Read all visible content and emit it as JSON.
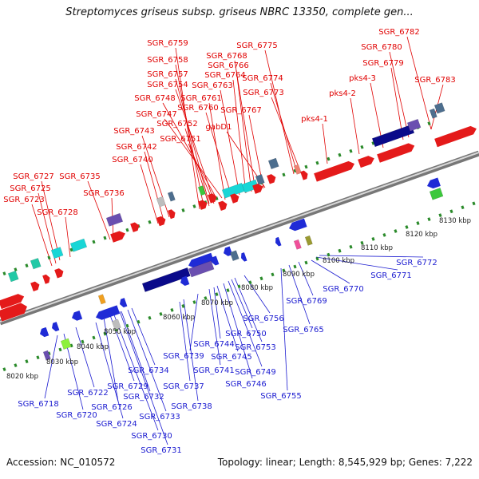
{
  "title": "Streptomyces griseus subsp. griseus NBRC 13350, complete gen...",
  "footer": {
    "accession_label": "Accession:",
    "accession": "NC_010572",
    "topology_label": "Topology:",
    "topology": "linear",
    "length_label": "Length:",
    "length": "8,545,929 bp",
    "genes_label": "Genes:",
    "genes": "7,222"
  },
  "colors": {
    "forward_label": "#e00000",
    "reverse_label": "#1a1ad0",
    "tick": "#2a8a2a",
    "backbone": "#888888",
    "red_gene": "#e41a1a",
    "blue_gene": "#1f2bd6",
    "navy_gene": "#0a0a8a",
    "cyan_gene": "#19d6d6",
    "teal_gene": "#22c9a6",
    "green_gene": "#3cc83c",
    "lime_gene": "#8cf03c",
    "purple_gene": "#6a4fb0",
    "slate_gene": "#4d6e8e",
    "gray_gene": "#bdbdbd",
    "orange_gene": "#f0a020",
    "pink_gene": "#f0509a",
    "olive_gene": "#9a9a30",
    "salmon_gene": "#f08070"
  },
  "kbp_scale": [
    "8020 kbp",
    "8030 kbp",
    "8040 kbp",
    "8050 kbp",
    "8060 kbp",
    "8070 kbp",
    "8080 kbp",
    "8090 kbp",
    "8100 kbp",
    "8110 kbp",
    "8120 kbp",
    "8130 kbp"
  ],
  "forward_labels": [
    "SGR_6759",
    "SGR_6758",
    "SGR_6757",
    "SGR_6754",
    "SGR_6748",
    "SGR_6747",
    "SGR_6743",
    "SGR_6742",
    "SGR_6740",
    "SGR_6752",
    "SGR_6751",
    "SGR_6761",
    "SGR_6760",
    "SGR_6763",
    "SGR_6764",
    "SGR_6766",
    "SGR_6768",
    "SGR_6767",
    "gabD1",
    "SGR_6775",
    "SGR_6774",
    "SGR_6773",
    "pks4-1",
    "pks4-2",
    "pks4-3",
    "SGR_6779",
    "SGR_6780",
    "SGR_6782",
    "SGR_6783",
    "SGR_6727",
    "SGR_6725",
    "SGR_6723",
    "SGR_6735",
    "SGR_6728",
    "SGR_6736"
  ],
  "reverse_labels": [
    "SGR_6718",
    "SGR_6720",
    "SGR_6722",
    "SGR_6724",
    "SGR_6726",
    "SGR_6729",
    "SGR_6730",
    "SGR_6731",
    "SGR_6732",
    "SGR_6733",
    "SGR_6734",
    "SGR_6737",
    "SGR_6738",
    "SGR_6739",
    "SGR_6741",
    "SGR_6744",
    "SGR_6745",
    "SGR_6746",
    "SGR_6749",
    "SGR_6750",
    "SGR_6753",
    "SGR_6755",
    "SGR_6756",
    "SGR_6765",
    "SGR_6769",
    "SGR_6770",
    "SGR_6771",
    "SGR_6772"
  ]
}
